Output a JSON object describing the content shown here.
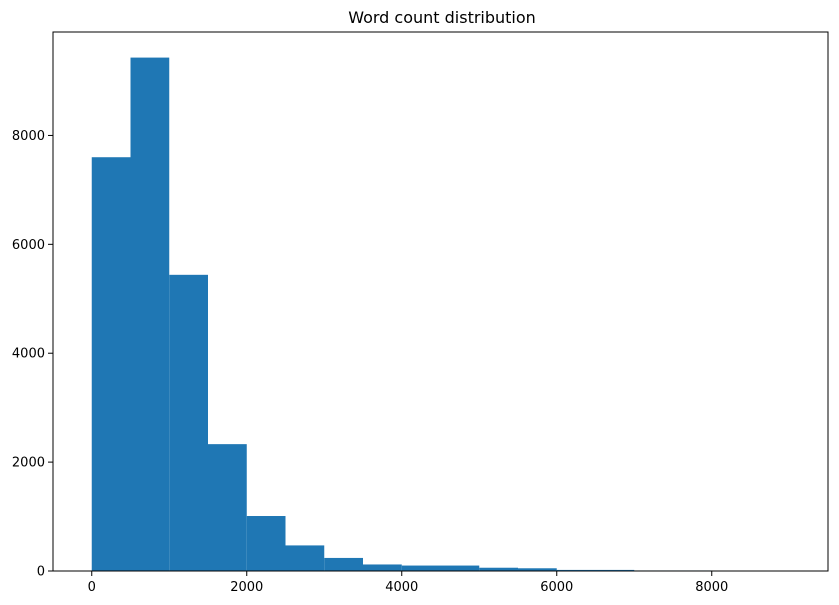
{
  "chart_data": {
    "type": "bar",
    "title": "Word count distribution",
    "xlabel": "",
    "ylabel": "",
    "bin_edges": [
      0,
      500,
      1000,
      1500,
      2000,
      2500,
      3000,
      3500,
      4000,
      4500,
      5000,
      5500,
      6000,
      6500,
      7000,
      7500,
      8000,
      8500,
      9000
    ],
    "values": [
      7600,
      9430,
      5440,
      2330,
      1010,
      470,
      240,
      120,
      100,
      100,
      60,
      50,
      20,
      20,
      10,
      10,
      0,
      0
    ],
    "xlim": [
      -500,
      9500
    ],
    "ylim": [
      0,
      9900
    ],
    "xticks": [
      0,
      2000,
      4000,
      6000,
      8000
    ],
    "yticks": [
      0,
      2000,
      4000,
      6000,
      8000
    ],
    "bar_color": "#1f77b4",
    "grid": false
  }
}
